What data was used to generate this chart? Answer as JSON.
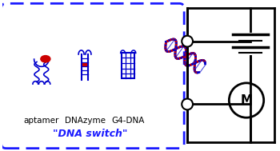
{
  "bg_color": "#ffffff",
  "box_color": "#1a1aff",
  "circuit_color": "#000000",
  "dna_blue": "#0000cc",
  "dna_red": "#cc0000",
  "label_color": "#000000",
  "switch_label_color": "#1a1aff",
  "labels": [
    "aptamer",
    "DNAzyme",
    "G4-DNA"
  ],
  "label_fontsize": 7.5,
  "switch_label": "\"DNA switch\"",
  "switch_label_fontsize": 9
}
